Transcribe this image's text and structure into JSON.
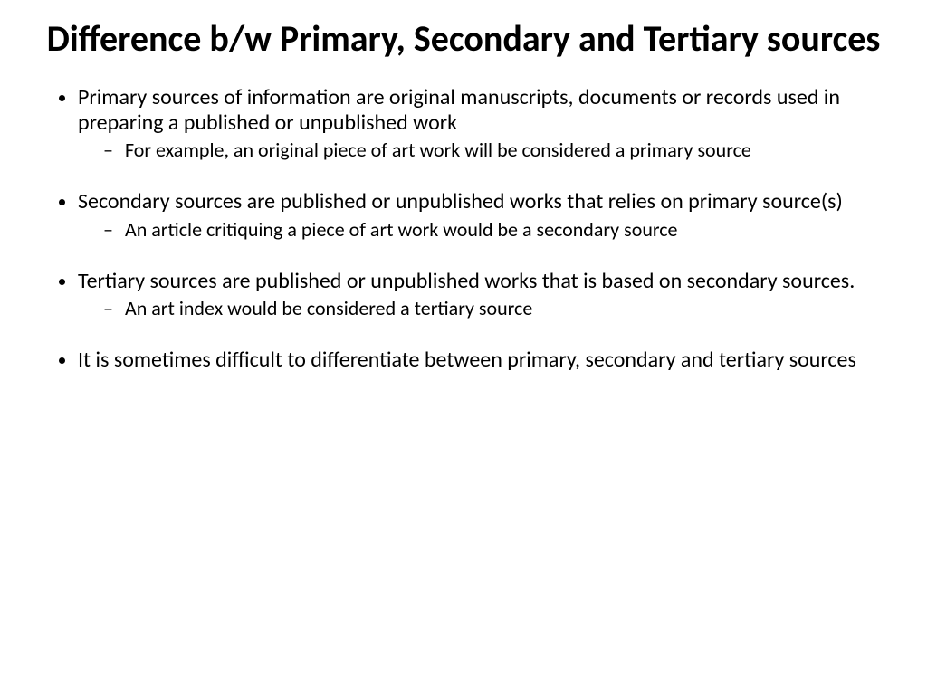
{
  "slide": {
    "title": "Difference b/w Primary, Secondary and Tertiary sources",
    "bullets": [
      {
        "text": "Primary sources of information are original manuscripts, documents or records used in preparing a published or unpublished work",
        "sub": [
          "For example, an original piece of art work will be considered a primary source"
        ]
      },
      {
        "text": "Secondary sources are published or unpublished works that relies on primary source(s)",
        "sub": [
          " An article critiquing a piece of art work would be a secondary source"
        ]
      },
      {
        "text": "Tertiary sources are published or unpublished works that is based on secondary sources.",
        "sub": [
          "An art index would be considered a tertiary source"
        ]
      },
      {
        "text": "It is sometimes difficult to differentiate between primary, secondary and tertiary sources",
        "sub": []
      }
    ],
    "styling": {
      "background_color": "#ffffff",
      "text_color": "#000000",
      "title_fontsize": 40,
      "title_fontweight": "bold",
      "body_fontsize": 24,
      "sub_fontsize": 22,
      "font_family": "Calibri"
    }
  }
}
